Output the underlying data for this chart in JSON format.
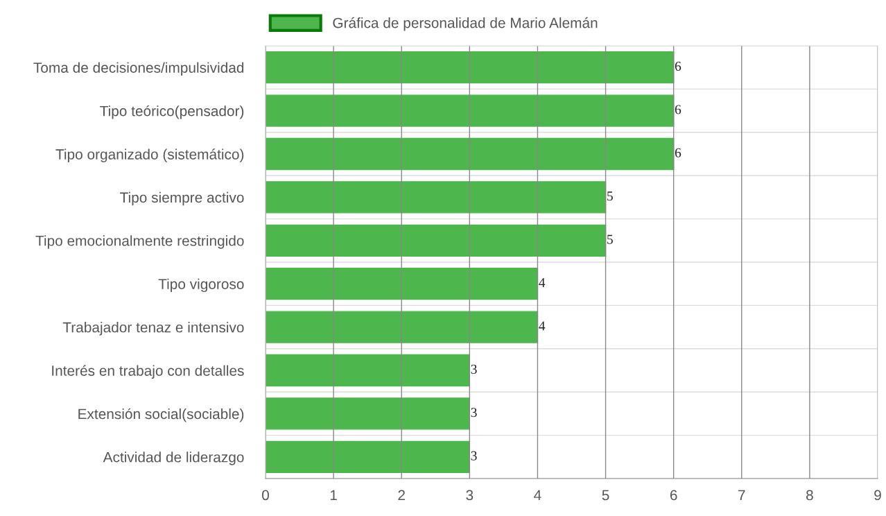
{
  "chart_data": {
    "type": "bar",
    "orientation": "horizontal",
    "categories": [
      "Toma de decisiones/impulsividad",
      "Tipo teórico(pensador)",
      "Tipo organizado (sistemático)",
      "Tipo siempre activo",
      "Tipo emocionalmente restringido",
      "Tipo vigoroso",
      "Trabajador tenaz e intensivo",
      "Interés en trabajo con detalles",
      "Extensión social(sociable)",
      "Actividad de liderazgo"
    ],
    "series": [
      {
        "name": "Gráfica de personalidad de Mario Alemán",
        "color": "#4db64d",
        "values": [
          6,
          6,
          6,
          5,
          5,
          4,
          4,
          3,
          3,
          3
        ]
      }
    ],
    "xlim": [
      0,
      9
    ],
    "xticks": [
      0,
      1,
      2,
      3,
      4,
      5,
      6,
      7,
      8,
      9
    ],
    "grid": true,
    "legend": "top",
    "data_labels": true
  }
}
